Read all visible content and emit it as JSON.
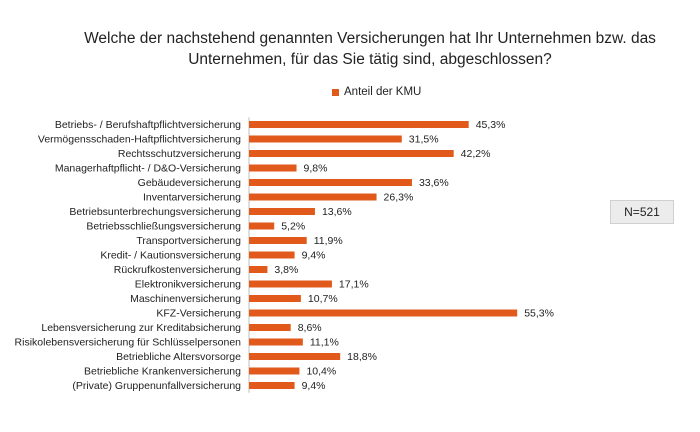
{
  "chart_data": {
    "type": "bar",
    "orientation": "horizontal",
    "title": "Welche der nachstehend genannten Versicherungen hat Ihr Unternehmen bzw. das Unternehmen, für das Sie tätig sind, abgeschlossen?",
    "title_lines": [
      "Welche der nachstehend genannten Versicherungen hat Ihr Unternehmen bzw. das",
      "Unternehmen, für das Sie tätig sind, abgeschlossen?"
    ],
    "legend": [
      "Anteil der KMU"
    ],
    "legend_position": "top-center",
    "annotation": "N=521",
    "xlabel": "",
    "ylabel": "",
    "xlim": [
      0,
      60
    ],
    "grid": false,
    "series_color": "#e15a1c",
    "categories": [
      "Betriebs- / Berufshaftpflichtversicherung",
      "Vermögensschaden-Haftpflichtversicherung",
      "Rechtsschutzversicherung",
      "Managerhaftpflicht- / D&O-Versicherung",
      "Gebäudeversicherung",
      "Inventarversicherung",
      "Betriebsunterbrechungsversicherung",
      "Betriebsschließungsversicherung",
      "Transportversicherung",
      "Kredit- / Kautionsversicherung",
      "Rückrufkostenversicherung",
      "Elektronikversicherung",
      "Maschinenversicherung",
      "KFZ-Versicherung",
      "Lebensversicherung zur Kreditabsicherung",
      "Risikolebensversicherung für Schlüsselpersonen",
      "Betriebliche Altersvorsorge",
      "Betriebliche Krankenversicherung",
      "(Private) Gruppenunfallversicherung"
    ],
    "values": [
      45.3,
      31.5,
      42.2,
      9.8,
      33.6,
      26.3,
      13.6,
      5.2,
      11.9,
      9.4,
      3.8,
      17.1,
      10.7,
      55.3,
      8.6,
      11.1,
      18.8,
      10.4,
      9.4
    ],
    "value_labels": [
      "45,3%",
      "31,5%",
      "42,2%",
      "9,8%",
      "33,6%",
      "26,3%",
      "13,6%",
      "5,2%",
      "11,9%",
      "9,4%",
      "3,8%",
      "17,1%",
      "10,7%",
      "55,3%",
      "8,6%",
      "11,1%",
      "18,8%",
      "10,4%",
      "9,4%"
    ]
  }
}
